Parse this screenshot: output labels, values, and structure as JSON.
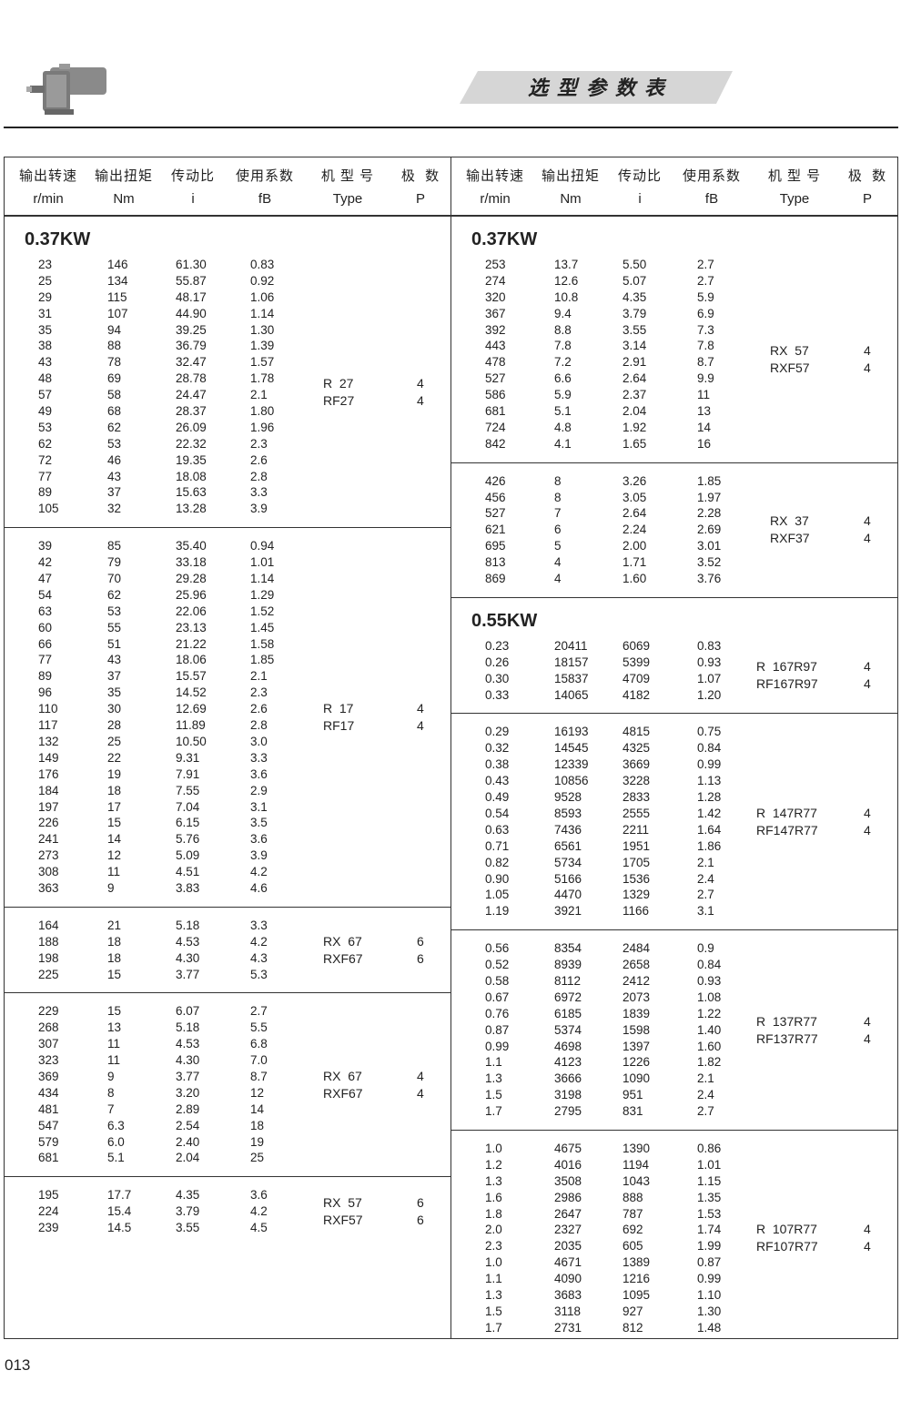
{
  "header": {
    "title": "选型参数表",
    "columns": [
      {
        "cn": "输出转速",
        "en": "r/min"
      },
      {
        "cn": "输出扭矩",
        "en": "Nm"
      },
      {
        "cn": "传动比",
        "en": "i"
      },
      {
        "cn": "使用系数",
        "en": "fB"
      },
      {
        "cn": "机 型 号",
        "en": "Type"
      },
      {
        "cn": "极  数",
        "en": "P"
      }
    ]
  },
  "left": [
    {
      "title": "0.37KW",
      "types": [
        "R  27",
        "RF27"
      ],
      "poles": [
        "4",
        "4"
      ],
      "rows": [
        [
          "23",
          "146",
          "61.30",
          "0.83"
        ],
        [
          "25",
          "134",
          "55.87",
          "0.92"
        ],
        [
          "29",
          "115",
          "48.17",
          "1.06"
        ],
        [
          "31",
          "107",
          "44.90",
          "1.14"
        ],
        [
          "35",
          "94",
          "39.25",
          "1.30"
        ],
        [
          "38",
          "88",
          "36.79",
          "1.39"
        ],
        [
          "43",
          "78",
          "32.47",
          "1.57"
        ],
        [
          "48",
          "69",
          "28.78",
          "1.78"
        ],
        [
          "57",
          "58",
          "24.47",
          "2.1"
        ],
        [
          "49",
          "68",
          "28.37",
          "1.80"
        ],
        [
          "53",
          "62",
          "26.09",
          "1.96"
        ],
        [
          "62",
          "53",
          "22.32",
          "2.3"
        ],
        [
          "72",
          "46",
          "19.35",
          "2.6"
        ],
        [
          "77",
          "43",
          "18.08",
          "2.8"
        ],
        [
          "89",
          "37",
          "15.63",
          "3.3"
        ],
        [
          "105",
          "32",
          "13.28",
          "3.9"
        ]
      ]
    },
    {
      "title": "",
      "types": [
        "R  17",
        "RF17"
      ],
      "poles": [
        "4",
        "4"
      ],
      "rows": [
        [
          "39",
          "85",
          "35.40",
          "0.94"
        ],
        [
          "42",
          "79",
          "33.18",
          "1.01"
        ],
        [
          "47",
          "70",
          "29.28",
          "1.14"
        ],
        [
          "54",
          "62",
          "25.96",
          "1.29"
        ],
        [
          "63",
          "53",
          "22.06",
          "1.52"
        ],
        [
          "60",
          "55",
          "23.13",
          "1.45"
        ],
        [
          "66",
          "51",
          "21.22",
          "1.58"
        ],
        [
          "77",
          "43",
          "18.06",
          "1.85"
        ],
        [
          "89",
          "37",
          "15.57",
          "2.1"
        ],
        [
          "96",
          "35",
          "14.52",
          "2.3"
        ],
        [
          "110",
          "30",
          "12.69",
          "2.6"
        ],
        [
          "117",
          "28",
          "11.89",
          "2.8"
        ],
        [
          "132",
          "25",
          "10.50",
          "3.0"
        ],
        [
          "149",
          "22",
          "9.31",
          "3.3"
        ],
        [
          "176",
          "19",
          "7.91",
          "3.6"
        ],
        [
          "184",
          "18",
          "7.55",
          "2.9"
        ],
        [
          "197",
          "17",
          "7.04",
          "3.1"
        ],
        [
          "226",
          "15",
          "6.15",
          "3.5"
        ],
        [
          "241",
          "14",
          "5.76",
          "3.6"
        ],
        [
          "273",
          "12",
          "5.09",
          "3.9"
        ],
        [
          "308",
          "11",
          "4.51",
          "4.2"
        ],
        [
          "363",
          "9",
          "3.83",
          "4.6"
        ]
      ]
    },
    {
      "title": "",
      "types": [
        "RX  67",
        "RXF67"
      ],
      "poles": [
        "6",
        "6"
      ],
      "rows": [
        [
          "164",
          "21",
          "5.18",
          "3.3"
        ],
        [
          "188",
          "18",
          "4.53",
          "4.2"
        ],
        [
          "198",
          "18",
          "4.30",
          "4.3"
        ],
        [
          "225",
          "15",
          "3.77",
          "5.3"
        ]
      ]
    },
    {
      "title": "",
      "types": [
        "RX  67",
        "RXF67"
      ],
      "poles": [
        "4",
        "4"
      ],
      "rows": [
        [
          "229",
          "15",
          "6.07",
          "2.7"
        ],
        [
          "268",
          "13",
          "5.18",
          "5.5"
        ],
        [
          "307",
          "11",
          "4.53",
          "6.8"
        ],
        [
          "323",
          "11",
          "4.30",
          "7.0"
        ],
        [
          "369",
          "9",
          "3.77",
          "8.7"
        ],
        [
          "434",
          "8",
          "3.20",
          "12"
        ],
        [
          "481",
          "7",
          "2.89",
          "14"
        ],
        [
          "547",
          "6.3",
          "2.54",
          "18"
        ],
        [
          "579",
          "6.0",
          "2.40",
          "19"
        ],
        [
          "681",
          "5.1",
          "2.04",
          "25"
        ]
      ]
    },
    {
      "title": "",
      "types": [
        "RX  57",
        "RXF57"
      ],
      "poles": [
        "6",
        "6"
      ],
      "rows": [
        [
          "195",
          "17.7",
          "4.35",
          "3.6"
        ],
        [
          "224",
          "15.4",
          "3.79",
          "4.2"
        ],
        [
          "239",
          "14.5",
          "3.55",
          "4.5"
        ]
      ]
    }
  ],
  "right": [
    {
      "title": "0.37KW",
      "types": [
        "RX  57",
        "RXF57"
      ],
      "poles": [
        "4",
        "4"
      ],
      "rows": [
        [
          "253",
          "13.7",
          "5.50",
          "2.7"
        ],
        [
          "274",
          "12.6",
          "5.07",
          "2.7"
        ],
        [
          "320",
          "10.8",
          "4.35",
          "5.9"
        ],
        [
          "367",
          "9.4",
          "3.79",
          "6.9"
        ],
        [
          "392",
          "8.8",
          "3.55",
          "7.3"
        ],
        [
          "443",
          "7.8",
          "3.14",
          "7.8"
        ],
        [
          "478",
          "7.2",
          "2.91",
          "8.7"
        ],
        [
          "527",
          "6.6",
          "2.64",
          "9.9"
        ],
        [
          "586",
          "5.9",
          "2.37",
          "11"
        ],
        [
          "681",
          "5.1",
          "2.04",
          "13"
        ],
        [
          "724",
          "4.8",
          "1.92",
          "14"
        ],
        [
          "842",
          "4.1",
          "1.65",
          "16"
        ]
      ]
    },
    {
      "title": "",
      "types": [
        "RX  37",
        "RXF37"
      ],
      "poles": [
        "4",
        "4"
      ],
      "rows": [
        [
          "426",
          "8",
          "3.26",
          "1.85"
        ],
        [
          "456",
          "8",
          "3.05",
          "1.97"
        ],
        [
          "527",
          "7",
          "2.64",
          "2.28"
        ],
        [
          "621",
          "6",
          "2.24",
          "2.69"
        ],
        [
          "695",
          "5",
          "2.00",
          "3.01"
        ],
        [
          "813",
          "4",
          "1.71",
          "3.52"
        ],
        [
          "869",
          "4",
          "1.60",
          "3.76"
        ]
      ]
    },
    {
      "title": "0.55KW",
      "wide": true,
      "types": [
        "R  167R97",
        "RF167R97"
      ],
      "poles": [
        "4",
        "4"
      ],
      "rows": [
        [
          "0.23",
          "20411",
          "6069",
          "0.83"
        ],
        [
          "0.26",
          "18157",
          "5399",
          "0.93"
        ],
        [
          "0.30",
          "15837",
          "4709",
          "1.07"
        ],
        [
          "0.33",
          "14065",
          "4182",
          "1.20"
        ]
      ]
    },
    {
      "title": "",
      "wide": true,
      "types": [
        "R  147R77",
        "RF147R77"
      ],
      "poles": [
        "4",
        "4"
      ],
      "rows": [
        [
          "0.29",
          "16193",
          "4815",
          "0.75"
        ],
        [
          "0.32",
          "14545",
          "4325",
          "0.84"
        ],
        [
          "0.38",
          "12339",
          "3669",
          "0.99"
        ],
        [
          "0.43",
          "10856",
          "3228",
          "1.13"
        ],
        [
          "0.49",
          "9528",
          "2833",
          "1.28"
        ],
        [
          "0.54",
          "8593",
          "2555",
          "1.42"
        ],
        [
          "0.63",
          "7436",
          "2211",
          "1.64"
        ],
        [
          "0.71",
          "6561",
          "1951",
          "1.86"
        ],
        [
          "0.82",
          "5734",
          "1705",
          "2.1"
        ],
        [
          "0.90",
          "5166",
          "1536",
          "2.4"
        ],
        [
          "1.05",
          "4470",
          "1329",
          "2.7"
        ],
        [
          "1.19",
          "3921",
          "1166",
          "3.1"
        ]
      ]
    },
    {
      "title": "",
      "wide": true,
      "types": [
        "R  137R77",
        "RF137R77"
      ],
      "poles": [
        "4",
        "4"
      ],
      "rows": [
        [
          "0.56",
          "8354",
          "2484",
          "0.9"
        ],
        [
          "0.52",
          "8939",
          "2658",
          "0.84"
        ],
        [
          "0.58",
          "8112",
          "2412",
          "0.93"
        ],
        [
          "0.67",
          "6972",
          "2073",
          "1.08"
        ],
        [
          "0.76",
          "6185",
          "1839",
          "1.22"
        ],
        [
          "0.87",
          "5374",
          "1598",
          "1.40"
        ],
        [
          "0.99",
          "4698",
          "1397",
          "1.60"
        ],
        [
          "1.1",
          "4123",
          "1226",
          "1.82"
        ],
        [
          "1.3",
          "3666",
          "1090",
          "2.1"
        ],
        [
          "1.5",
          "3198",
          "951",
          "2.4"
        ],
        [
          "1.7",
          "2795",
          "831",
          "2.7"
        ]
      ]
    },
    {
      "title": "",
      "wide": true,
      "types": [
        "R  107R77",
        "RF107R77"
      ],
      "poles": [
        "4",
        "4"
      ],
      "rows": [
        [
          "1.0",
          "4675",
          "1390",
          "0.86"
        ],
        [
          "1.2",
          "4016",
          "1194",
          "1.01"
        ],
        [
          "1.3",
          "3508",
          "1043",
          "1.15"
        ],
        [
          "1.6",
          "2986",
          "888",
          "1.35"
        ],
        [
          "1.8",
          "2647",
          "787",
          "1.53"
        ],
        [
          "2.0",
          "2327",
          "692",
          "1.74"
        ],
        [
          "2.3",
          "2035",
          "605",
          "1.99"
        ],
        [
          "1.0",
          "4671",
          "1389",
          "0.87"
        ],
        [
          "1.1",
          "4090",
          "1216",
          "0.99"
        ],
        [
          "1.3",
          "3683",
          "1095",
          "1.10"
        ],
        [
          "1.5",
          "3118",
          "927",
          "1.30"
        ],
        [
          "1.7",
          "2731",
          "812",
          "1.48"
        ]
      ]
    }
  ],
  "page_number": "013"
}
